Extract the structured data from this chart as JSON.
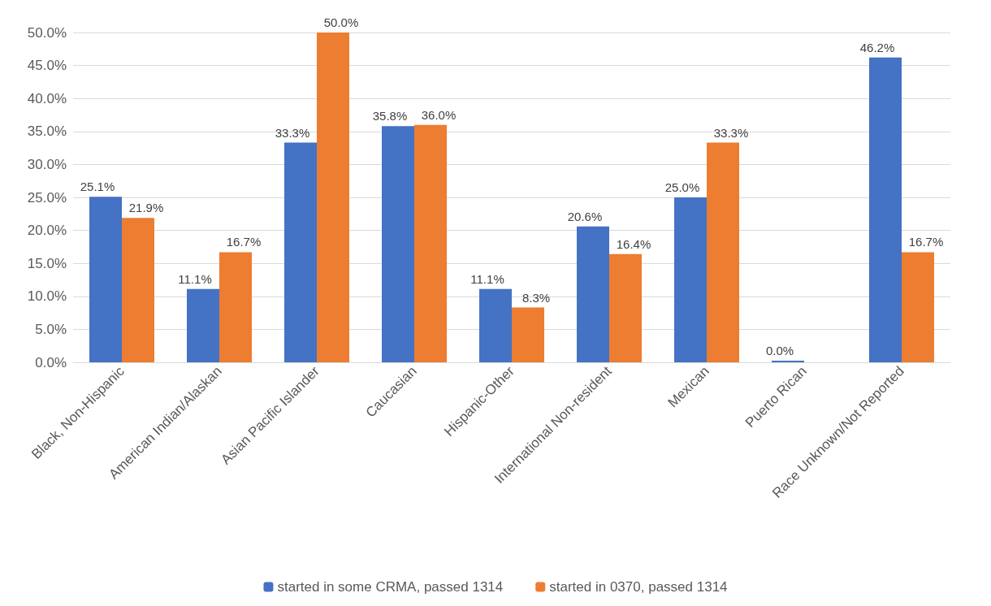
{
  "chart_data": {
    "type": "bar",
    "categories": [
      "Black, Non-Hispanic",
      "American Indian/Alaskan",
      "Asian Pacific Islander",
      "Caucasian",
      "Hispanic-Other",
      "International Non-resident",
      "Mexican",
      "Puerto Rican",
      "Race Unknown/Not Reported"
    ],
    "series": [
      {
        "name": "started in some CRMA, passed 1314",
        "color": "#4472c4",
        "values": [
          25.1,
          11.1,
          33.3,
          35.8,
          11.1,
          20.6,
          25.0,
          0.0,
          46.2
        ],
        "value_labels": [
          "25.1%",
          "11.1%",
          "33.3%",
          "35.8%",
          "11.1%",
          "20.6%",
          "25.0%",
          "0.0%",
          "46.2%"
        ]
      },
      {
        "name": "started in 0370, passed 1314",
        "color": "#ed7d31",
        "values": [
          21.9,
          16.7,
          50.0,
          36.0,
          8.3,
          16.4,
          33.3,
          null,
          16.7
        ],
        "value_labels": [
          "21.9%",
          "16.7%",
          "50.0%",
          "36.0%",
          "8.3%",
          "16.4%",
          "33.3%",
          null,
          "16.7%"
        ]
      }
    ],
    "ylim": [
      0,
      50
    ],
    "yticks": [
      {
        "value": 0,
        "label": "0.0%"
      },
      {
        "value": 5,
        "label": "5.0%"
      },
      {
        "value": 10,
        "label": "10.0%"
      },
      {
        "value": 15,
        "label": "15.0%"
      },
      {
        "value": 20,
        "label": "20.0%"
      },
      {
        "value": 25,
        "label": "25.0%"
      },
      {
        "value": 30,
        "label": "30.0%"
      },
      {
        "value": 35,
        "label": "35.0%"
      },
      {
        "value": 40,
        "label": "40.0%"
      },
      {
        "value": 45,
        "label": "45.0%"
      },
      {
        "value": 50,
        "label": "50.0%"
      }
    ],
    "grid": "y",
    "legend": "bottom"
  }
}
